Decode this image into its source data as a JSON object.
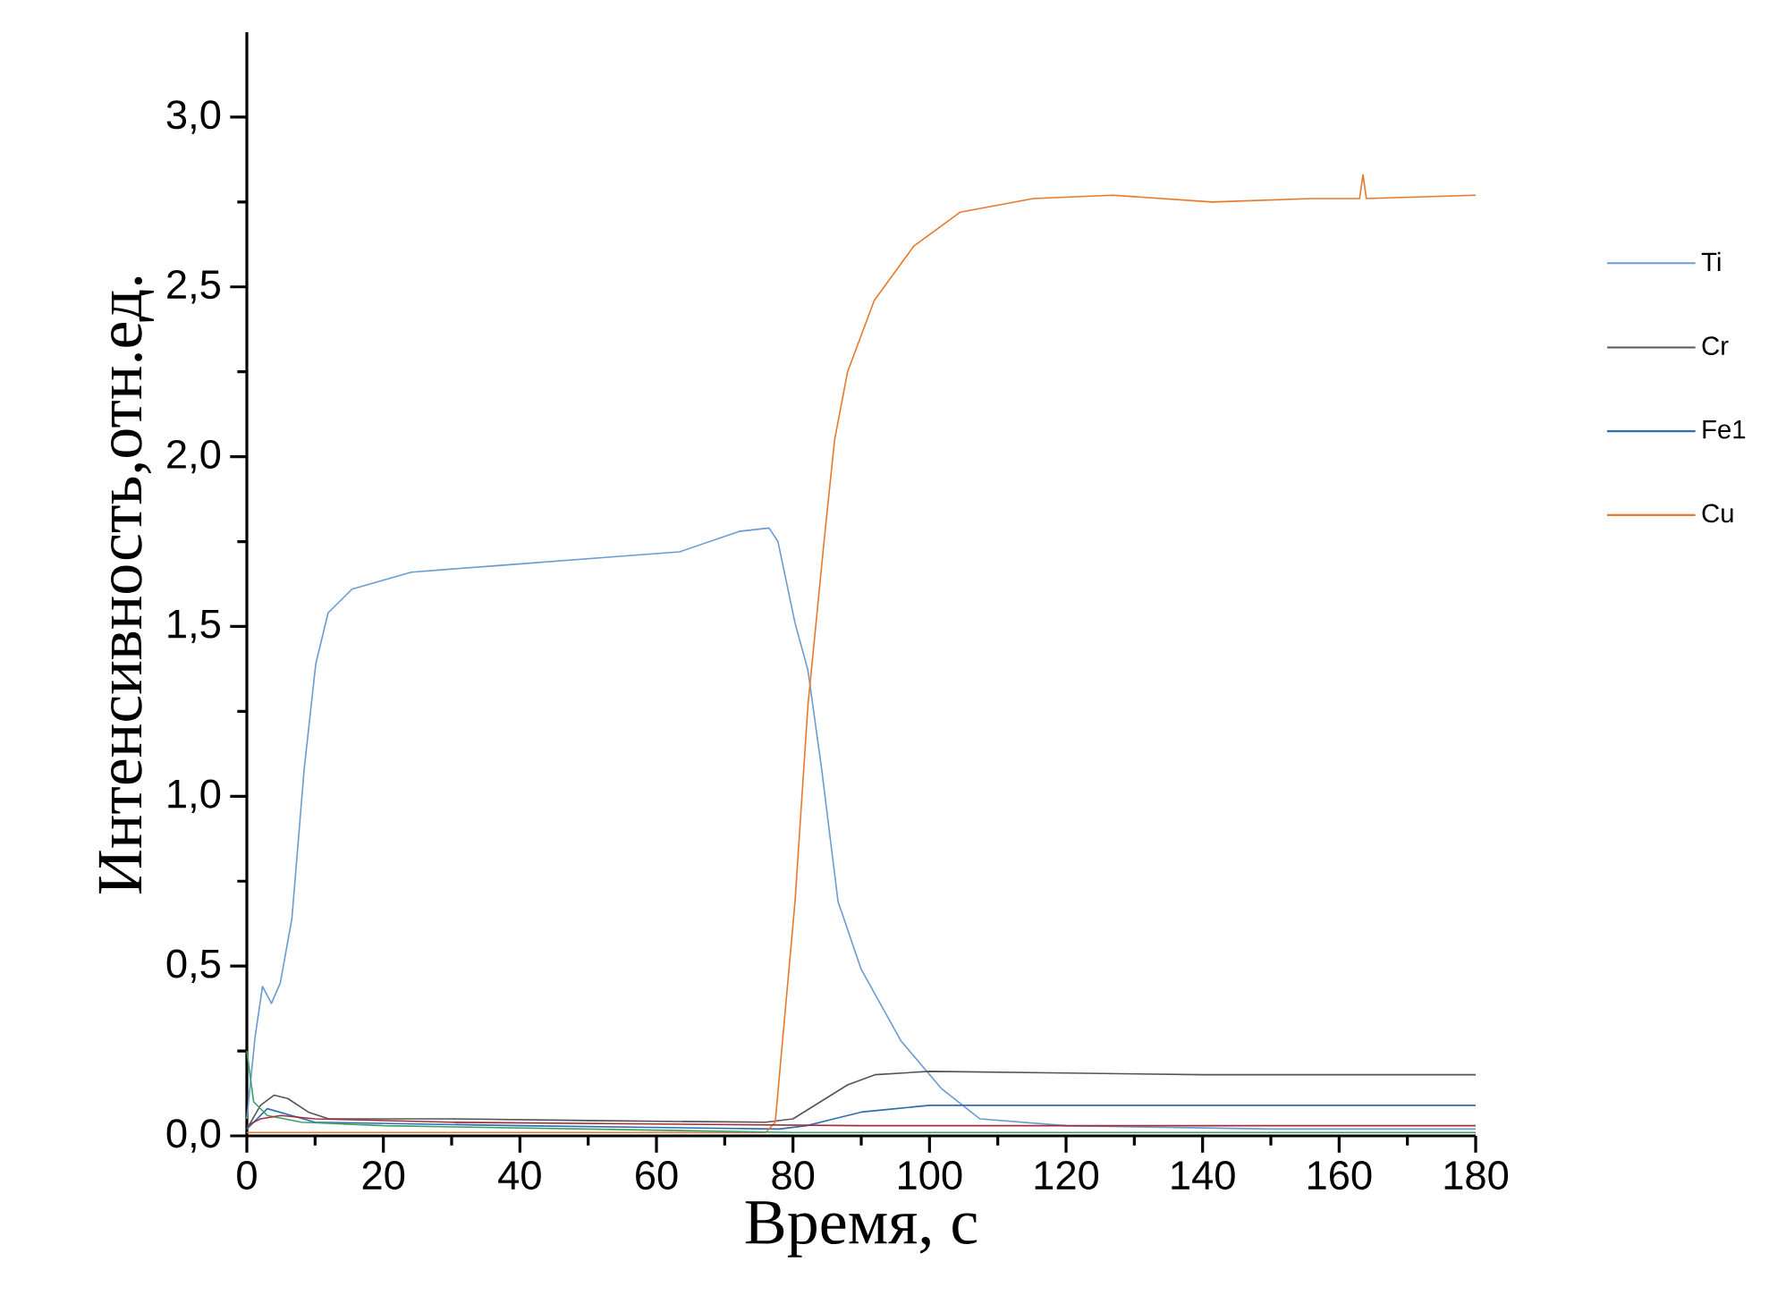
{
  "chart_data": {
    "type": "line",
    "xlabel": "Время, с",
    "ylabel": "Интенсивность,отн.ед.",
    "xlim": [
      0,
      180
    ],
    "ylim": [
      0,
      3.25
    ],
    "xticks": [
      0,
      20,
      40,
      60,
      80,
      100,
      120,
      140,
      160,
      180
    ],
    "yticks": [
      {
        "value": 0,
        "label": "0,0"
      },
      {
        "value": 0.5,
        "label": "0,5"
      },
      {
        "value": 1.0,
        "label": "1,0"
      },
      {
        "value": 1.5,
        "label": "1,5"
      },
      {
        "value": 2.0,
        "label": "2,0"
      },
      {
        "value": 2.5,
        "label": "2,5"
      },
      {
        "value": 3.0,
        "label": "3,0"
      }
    ],
    "legend": "right",
    "series": [
      {
        "name": "Ti",
        "color": "#6b9bd0",
        "x": [
          0,
          1.2,
          2.3,
          3.6,
          4.9,
          6.6,
          8.4,
          10.1,
          11.9,
          15.4,
          24.1,
          37.2,
          50.3,
          63.4,
          72.1,
          76.5,
          77.8,
          80.3,
          82.2,
          84.2,
          86.6,
          90,
          95.8,
          101.7,
          107.4,
          120,
          150,
          180
        ],
        "values": [
          0.05,
          0.29,
          0.44,
          0.39,
          0.45,
          0.64,
          1.08,
          1.39,
          1.54,
          1.61,
          1.66,
          1.68,
          1.7,
          1.72,
          1.78,
          1.79,
          1.75,
          1.51,
          1.37,
          1.08,
          0.69,
          0.49,
          0.28,
          0.14,
          0.05,
          0.03,
          0.02,
          0.02
        ]
      },
      {
        "name": "Cr",
        "color": "#555555",
        "x": [
          0,
          2,
          4,
          6,
          9,
          12,
          30,
          50,
          76,
          80,
          84,
          88,
          92,
          100,
          120,
          140,
          160,
          180
        ],
        "values": [
          0.02,
          0.09,
          0.12,
          0.11,
          0.07,
          0.05,
          0.05,
          0.045,
          0.04,
          0.05,
          0.1,
          0.15,
          0.18,
          0.19,
          0.185,
          0.18,
          0.18,
          0.18
        ]
      },
      {
        "name": "Fe1",
        "color": "#2f6fb0",
        "x": [
          0,
          3,
          10,
          40,
          78,
          82,
          86,
          90,
          95,
          100,
          120,
          140,
          160,
          180
        ],
        "values": [
          0.02,
          0.08,
          0.04,
          0.03,
          0.02,
          0.03,
          0.05,
          0.07,
          0.08,
          0.09,
          0.09,
          0.09,
          0.09,
          0.09
        ]
      },
      {
        "name": "Cu",
        "color": "#e8782a",
        "x": [
          0,
          20,
          50,
          76,
          77.4,
          80.3,
          82.2,
          84.6,
          86.1,
          88,
          91.9,
          97.7,
          104.5,
          115.2,
          126.8,
          141.4,
          156,
          163,
          163.5,
          164,
          180
        ],
        "values": [
          0.01,
          0.01,
          0.01,
          0.01,
          0.04,
          0.69,
          1.27,
          1.76,
          2.05,
          2.25,
          2.46,
          2.62,
          2.72,
          2.76,
          2.77,
          2.75,
          2.76,
          2.76,
          2.83,
          2.76,
          2.77
        ]
      },
      {
        "color": "#3aa06a",
        "x": [
          0,
          1,
          3,
          8,
          20,
          50,
          80,
          120,
          180
        ],
        "values": [
          0.25,
          0.1,
          0.06,
          0.04,
          0.03,
          0.02,
          0.01,
          0.01,
          0.01
        ]
      },
      {
        "color": "#a03040",
        "x": [
          0,
          2,
          5,
          10,
          30,
          60,
          90,
          130,
          180
        ],
        "values": [
          0.03,
          0.05,
          0.06,
          0.05,
          0.04,
          0.035,
          0.03,
          0.03,
          0.03
        ]
      }
    ]
  }
}
